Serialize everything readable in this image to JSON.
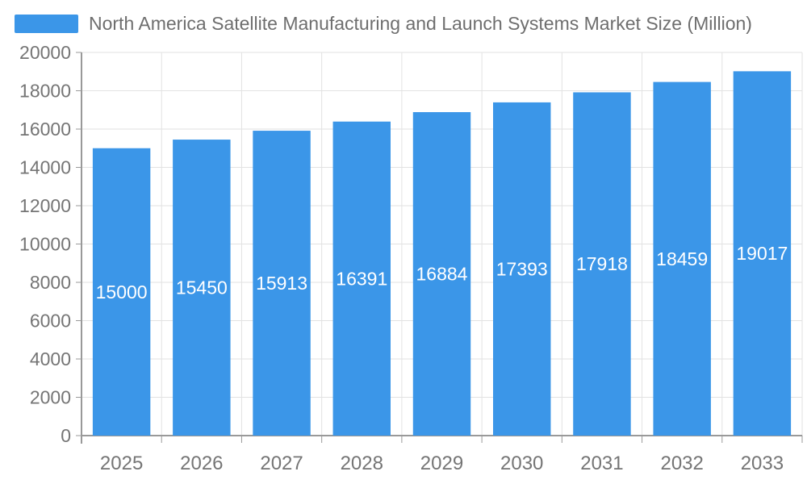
{
  "chart_data": {
    "type": "bar",
    "title": "North America Satellite Manufacturing and Launch Systems Market Size (Million)",
    "categories": [
      "2025",
      "2026",
      "2027",
      "2028",
      "2029",
      "2030",
      "2031",
      "2032",
      "2033"
    ],
    "values": [
      15000,
      15450,
      15913,
      16391,
      16884,
      17393,
      17918,
      18459,
      19017
    ],
    "xlabel": "",
    "ylabel": "",
    "ylim": [
      0,
      20000
    ],
    "yticks": [
      0,
      2000,
      4000,
      6000,
      8000,
      10000,
      12000,
      14000,
      16000,
      18000,
      20000
    ],
    "grid": true,
    "legend_position": "top-left",
    "bar_label_position": "inside-center",
    "colors": {
      "bar": "#3b96e8",
      "bar_label": "#ffffff",
      "axis_text": "#757575",
      "title_text": "#6e6e6e",
      "grid_line": "#e2e2e2",
      "axis_line": "#999999",
      "background": "#ffffff"
    }
  }
}
